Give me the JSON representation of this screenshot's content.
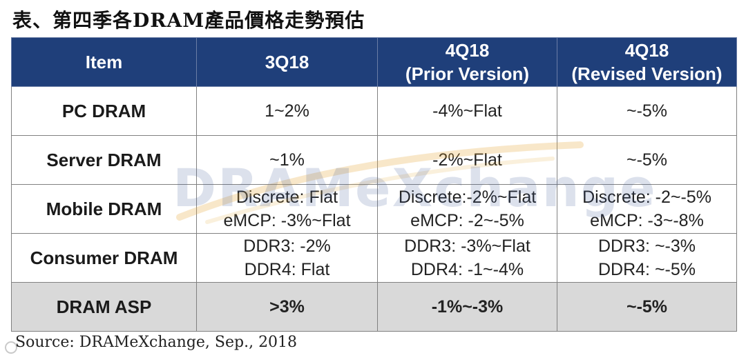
{
  "title": "表、第四季各DRAM產品價格走勢預估",
  "table": {
    "headers": [
      {
        "lines": [
          "Item"
        ]
      },
      {
        "lines": [
          "3Q18"
        ]
      },
      {
        "lines": [
          "4Q18",
          "(Prior Version)"
        ]
      },
      {
        "lines": [
          "4Q18",
          "(Revised Version)"
        ]
      }
    ],
    "rows": [
      {
        "item": "PC DRAM",
        "q3": [
          "1~2%"
        ],
        "prior": [
          "-4%~Flat"
        ],
        "revised": [
          "~-5%"
        ]
      },
      {
        "item": "Server DRAM",
        "q3": [
          "~1%"
        ],
        "prior": [
          "-2%~Flat"
        ],
        "revised": [
          "~-5%"
        ]
      },
      {
        "item": "Mobile DRAM",
        "q3": [
          "Discrete: Flat",
          "eMCP: -3%~Flat"
        ],
        "prior": [
          "Discrete:-2%~Flat",
          "eMCP: -2~-5%"
        ],
        "revised": [
          "Discrete: -2~-5%",
          "eMCP: -3~-8%"
        ]
      },
      {
        "item": "Consumer DRAM",
        "q3": [
          "DDR3: -2%",
          "DDR4: Flat"
        ],
        "prior": [
          "DDR3: -3%~Flat",
          "DDR4: -1~-4%"
        ],
        "revised": [
          "DDR3: ~-3%",
          "DDR4: ~-5%"
        ]
      }
    ],
    "asp": {
      "item": "DRAM ASP",
      "q3": ">3%",
      "prior": "-1%~-3%",
      "revised": "~-5%"
    }
  },
  "watermark": "DRAMeXchange",
  "source": "Source: DRAMeXchange, Sep., 2018",
  "colors": {
    "header_bg": "#1f3f7a",
    "asp_bg": "#d9d9d9",
    "border": "#808080"
  }
}
